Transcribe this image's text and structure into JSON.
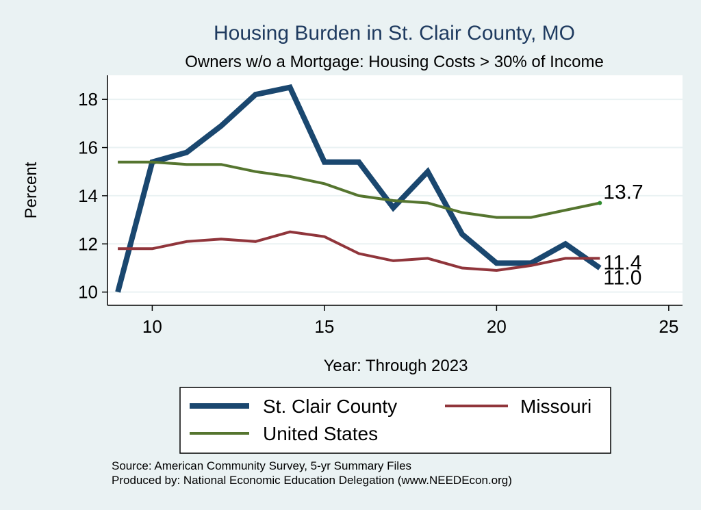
{
  "chart_data": {
    "type": "line",
    "title": "Housing Burden in St. Clair County, MO",
    "subtitle": "Owners w/o a Mortgage: Housing Costs > 30% of Income",
    "xlabel": "Year: Through 2023",
    "ylabel": "Percent",
    "xlim": [
      8.7,
      25.4
    ],
    "ylim": [
      9.45,
      19.0
    ],
    "xticks": [
      10,
      15,
      20,
      25
    ],
    "yticks": [
      10,
      12,
      14,
      16,
      18
    ],
    "grid": true,
    "x": [
      9,
      10,
      11,
      12,
      13,
      14,
      15,
      16,
      17,
      18,
      19,
      20,
      21,
      22,
      23
    ],
    "series": [
      {
        "name": "St. Clair County",
        "color": "#1a476f",
        "values": [
          10.0,
          15.4,
          15.8,
          16.9,
          18.2,
          18.5,
          15.4,
          15.4,
          13.5,
          15.0,
          12.4,
          11.2,
          11.2,
          12.0,
          11.0
        ],
        "end_label": "11.0"
      },
      {
        "name": "Missouri",
        "color": "#90353b",
        "values": [
          11.8,
          11.8,
          12.1,
          12.2,
          12.1,
          12.5,
          12.3,
          11.6,
          11.3,
          11.4,
          11.0,
          10.9,
          11.1,
          11.4,
          11.4
        ],
        "end_label": "11.4"
      },
      {
        "name": "United States",
        "color": "#55752f",
        "values": [
          15.4,
          15.4,
          15.3,
          15.3,
          15.0,
          14.8,
          14.5,
          14.0,
          13.8,
          13.7,
          13.3,
          13.1,
          13.1,
          13.4,
          13.7
        ],
        "end_label": "13.7"
      }
    ],
    "legend": {
      "placement": "bottom",
      "items": [
        "St. Clair County",
        "Missouri",
        "United States"
      ]
    }
  },
  "source": {
    "line1": "Source: American Community Survey, 5-yr Summary Files",
    "line2": "Produced by: National Economic Education Delegation (www.NEEDEcon.org)"
  }
}
